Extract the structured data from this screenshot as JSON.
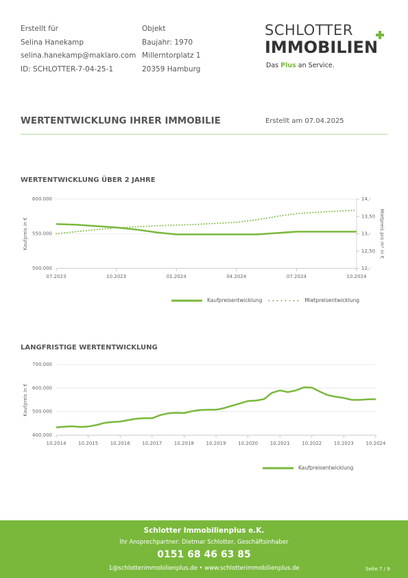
{
  "header": {
    "left": [
      "Erstellt für",
      "Selina Hanekamp",
      "selina.hanekamp@maklaro.com",
      "ID: SCHLOTTER-7-04-25-1"
    ],
    "middle": [
      "Objekt",
      "Baujahr: 1970",
      "Millerntorplatz 1",
      "20359 Hamburg"
    ],
    "logo": {
      "line1": "SCHLOTTER",
      "line2": "IMMOBILIEN",
      "tagline": [
        "Das",
        "Plus",
        "an Service."
      ]
    }
  },
  "title": "WERTENTWICKLUNG IHRER IMMOBILIE",
  "date": "Erstellt am 07.04.2025",
  "chart_data": [
    {
      "type": "line",
      "title": "WERTENTWICKLUNG ÜBER 2 JAHRE",
      "ylabel": "Kaufpreis in €",
      "y2label": "Mietpreis pro m² in €",
      "categories": [
        "07.2023",
        null,
        null,
        "10.2023",
        null,
        null,
        "01.2024",
        null,
        null,
        "04.2024",
        null,
        null,
        "07.2024",
        null,
        null,
        "10.2024"
      ],
      "ylim": [
        500000,
        600000
      ],
      "yticks": [
        {
          "value": 500000,
          "label": "500.000"
        },
        {
          "value": 550000,
          "label": "550.000"
        },
        {
          "value": 600000,
          "label": "600.000"
        }
      ],
      "y2lim": [
        12,
        14
      ],
      "y2ticks": [
        {
          "value": 12,
          "label": "12,-"
        },
        {
          "value": 12.5,
          "label": "12,50"
        },
        {
          "value": 13,
          "label": "13,-"
        },
        {
          "value": 13.5,
          "label": "13,50"
        },
        {
          "value": 14,
          "label": "14,-"
        }
      ],
      "grid": true,
      "series": [
        {
          "name": "Kaufpreisentwicklung",
          "color": "#7ab83c",
          "style": "solid",
          "values": [
            564000,
            563000,
            561000,
            559000,
            556000,
            552000,
            549000,
            549000,
            549000,
            549000,
            549000,
            551000,
            553000,
            553000,
            553000,
            553000
          ]
        },
        {
          "name": "Mietpreisentwicklung",
          "color": "#7ab83c",
          "style": "dotted",
          "axis": "y2",
          "values": [
            13.0,
            13.06,
            13.12,
            13.17,
            13.2,
            13.23,
            13.25,
            13.27,
            13.3,
            13.33,
            13.4,
            13.5,
            13.58,
            13.62,
            13.65,
            13.68
          ]
        }
      ]
    },
    {
      "type": "line",
      "title": "LANGFRISTIGE WERTENTWICKLUNG",
      "ylabel": "Kaufpreis in €",
      "categories": [
        "10.2014",
        null,
        null,
        null,
        "10.2015",
        null,
        null,
        null,
        "10.2016",
        null,
        null,
        null,
        "10.2017",
        null,
        null,
        null,
        "10.2018",
        null,
        null,
        null,
        "10.2019",
        null,
        null,
        null,
        "10.2020",
        null,
        null,
        null,
        "10.2021",
        null,
        null,
        null,
        "10.2022",
        null,
        null,
        null,
        "10.2023",
        null,
        null,
        null,
        "10.2024"
      ],
      "ylim": [
        400000,
        700000
      ],
      "yticks": [
        {
          "value": 400000,
          "label": "400.000"
        },
        {
          "value": 500000,
          "label": "500.000"
        },
        {
          "value": 600000,
          "label": "600.000"
        },
        {
          "value": 700000,
          "label": "700.000"
        }
      ],
      "grid": true,
      "series": [
        {
          "name": "Kaufpreisentwicklung",
          "color": "#7ab83c",
          "style": "solid",
          "values": [
            433000,
            436000,
            438000,
            435000,
            437000,
            443000,
            452000,
            456000,
            458000,
            464000,
            470000,
            472000,
            472000,
            485000,
            493000,
            495000,
            494000,
            502000,
            507000,
            508000,
            508000,
            515000,
            525000,
            535000,
            545000,
            547000,
            553000,
            580000,
            590000,
            583000,
            590000,
            603000,
            602000,
            585000,
            570000,
            563000,
            558000,
            550000,
            550000,
            552000,
            553000
          ]
        }
      ]
    }
  ],
  "footer": {
    "company": "Schlotter Immobilienplus e.K.",
    "contact": "Ihr Ansprechpartner: Dietmar Schlotter, Geschäftsinhaber",
    "phone": "0151 68 46 63 85",
    "web": "1@schlotterimmobilienplus.de • www.schlotterimmobilienplus.de",
    "page": "Seite 7 / 9"
  }
}
